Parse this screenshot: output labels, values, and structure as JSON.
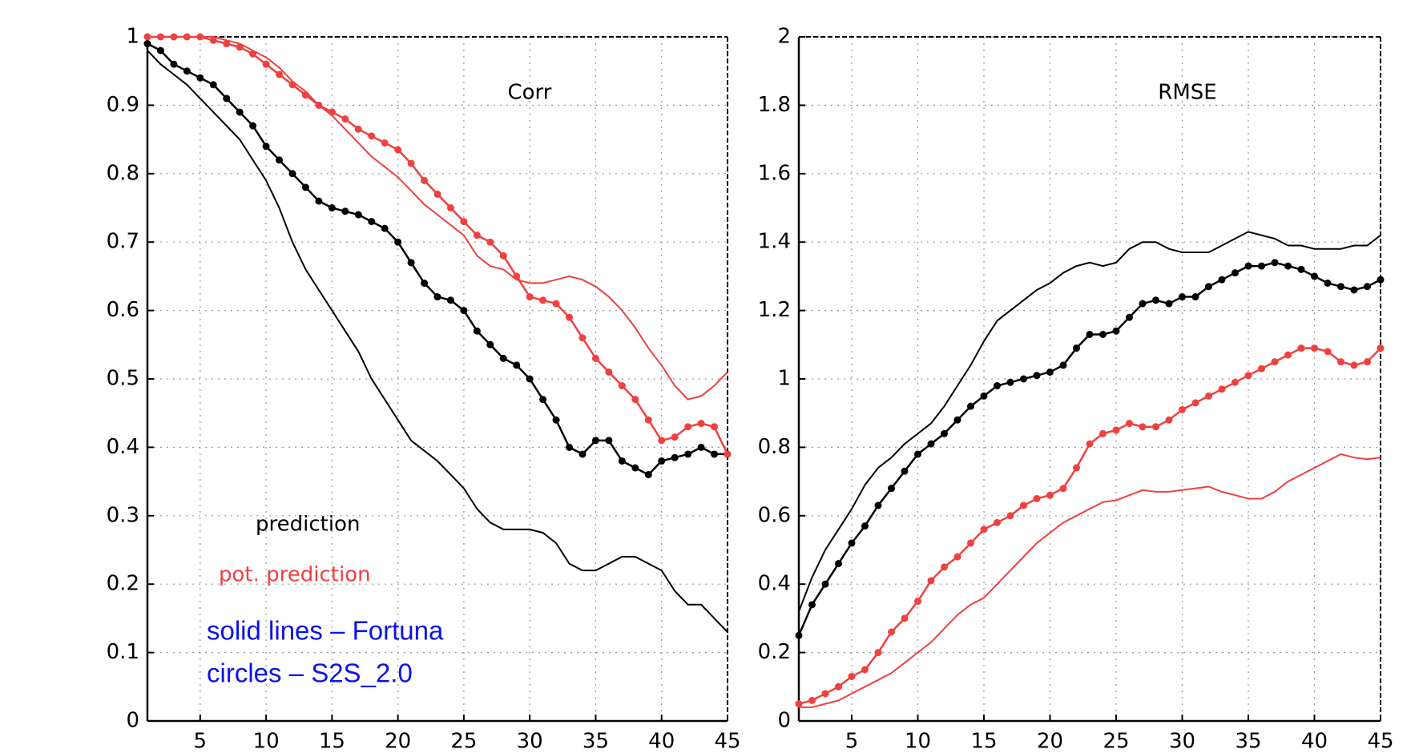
{
  "chart_data": [
    {
      "type": "line",
      "title": "Corr",
      "x": [
        1,
        2,
        3,
        4,
        5,
        6,
        7,
        8,
        9,
        10,
        11,
        12,
        13,
        14,
        15,
        16,
        17,
        18,
        19,
        20,
        21,
        22,
        23,
        24,
        25,
        26,
        27,
        28,
        29,
        30,
        31,
        32,
        33,
        34,
        35,
        36,
        37,
        38,
        39,
        40,
        41,
        42,
        43,
        44,
        45
      ],
      "xlim": [
        1,
        45
      ],
      "xticks": [
        5,
        10,
        15,
        20,
        25,
        30,
        35,
        40,
        45
      ],
      "ylim": [
        0,
        1
      ],
      "yticks": [
        0,
        0.1,
        0.2,
        0.3,
        0.4,
        0.5,
        0.6,
        0.7,
        0.8,
        0.9,
        1
      ],
      "grid": true,
      "series": [
        {
          "color": "#000000",
          "marker": "none",
          "values": [
            0.98,
            0.96,
            0.945,
            0.93,
            0.91,
            0.89,
            0.87,
            0.85,
            0.82,
            0.79,
            0.75,
            0.7,
            0.66,
            0.63,
            0.6,
            0.57,
            0.54,
            0.5,
            0.47,
            0.44,
            0.41,
            0.395,
            0.38,
            0.36,
            0.34,
            0.31,
            0.29,
            0.28,
            0.28,
            0.28,
            0.275,
            0.26,
            0.23,
            0.22,
            0.22,
            0.23,
            0.24,
            0.24,
            0.23,
            0.22,
            0.19,
            0.17,
            0.17,
            0.15,
            0.13
          ]
        },
        {
          "color": "#000000",
          "marker": "circle",
          "values": [
            0.99,
            0.98,
            0.96,
            0.95,
            0.94,
            0.93,
            0.91,
            0.89,
            0.87,
            0.84,
            0.82,
            0.8,
            0.78,
            0.76,
            0.75,
            0.745,
            0.74,
            0.73,
            0.72,
            0.7,
            0.67,
            0.64,
            0.62,
            0.615,
            0.6,
            0.57,
            0.55,
            0.53,
            0.52,
            0.5,
            0.47,
            0.44,
            0.4,
            0.39,
            0.41,
            0.41,
            0.38,
            0.37,
            0.36,
            0.38,
            0.385,
            0.39,
            0.4,
            0.39,
            0.39
          ]
        },
        {
          "color": "#f04040",
          "marker": "none",
          "values": [
            1.0,
            1.0,
            1.0,
            1.0,
            1.0,
            1.0,
            0.995,
            0.99,
            0.98,
            0.97,
            0.955,
            0.935,
            0.92,
            0.9,
            0.885,
            0.865,
            0.845,
            0.825,
            0.81,
            0.795,
            0.775,
            0.755,
            0.74,
            0.725,
            0.71,
            0.68,
            0.665,
            0.66,
            0.645,
            0.64,
            0.64,
            0.645,
            0.65,
            0.645,
            0.635,
            0.62,
            0.6,
            0.575,
            0.545,
            0.52,
            0.49,
            0.47,
            0.475,
            0.49,
            0.51
          ]
        },
        {
          "color": "#f04040",
          "marker": "circle",
          "values": [
            1.0,
            1.0,
            1.0,
            1.0,
            1.0,
            0.995,
            0.99,
            0.985,
            0.975,
            0.96,
            0.945,
            0.93,
            0.915,
            0.9,
            0.89,
            0.88,
            0.865,
            0.855,
            0.845,
            0.835,
            0.815,
            0.79,
            0.77,
            0.75,
            0.73,
            0.71,
            0.7,
            0.68,
            0.65,
            0.62,
            0.615,
            0.61,
            0.59,
            0.56,
            0.53,
            0.51,
            0.49,
            0.47,
            0.44,
            0.41,
            0.415,
            0.43,
            0.435,
            0.43,
            0.39
          ]
        }
      ],
      "annotations": [
        {
          "text": "prediction",
          "color": "#000000"
        },
        {
          "text": "pot. prediction",
          "color": "#f04040"
        },
        {
          "text": "solid lines – Fortuna",
          "color": "#0a14e6"
        },
        {
          "text": "circles – S2S_2.0",
          "color": "#0a14e6"
        }
      ]
    },
    {
      "type": "line",
      "title": "RMSE",
      "x": [
        1,
        2,
        3,
        4,
        5,
        6,
        7,
        8,
        9,
        10,
        11,
        12,
        13,
        14,
        15,
        16,
        17,
        18,
        19,
        20,
        21,
        22,
        23,
        24,
        25,
        26,
        27,
        28,
        29,
        30,
        31,
        32,
        33,
        34,
        35,
        36,
        37,
        38,
        39,
        40,
        41,
        42,
        43,
        44,
        45
      ],
      "xlim": [
        1,
        45
      ],
      "xticks": [
        5,
        10,
        15,
        20,
        25,
        30,
        35,
        40,
        45
      ],
      "ylim": [
        0,
        2
      ],
      "yticks": [
        0,
        0.2,
        0.4,
        0.6,
        0.8,
        1,
        1.2,
        1.4,
        1.6,
        1.8,
        2
      ],
      "grid": true,
      "series": [
        {
          "color": "#000000",
          "marker": "none",
          "values": [
            0.32,
            0.42,
            0.5,
            0.56,
            0.62,
            0.69,
            0.74,
            0.77,
            0.81,
            0.84,
            0.87,
            0.92,
            0.98,
            1.04,
            1.11,
            1.17,
            1.2,
            1.23,
            1.26,
            1.28,
            1.31,
            1.33,
            1.34,
            1.33,
            1.34,
            1.38,
            1.4,
            1.4,
            1.38,
            1.37,
            1.37,
            1.37,
            1.39,
            1.41,
            1.43,
            1.42,
            1.41,
            1.39,
            1.39,
            1.38,
            1.38,
            1.38,
            1.39,
            1.39,
            1.42
          ]
        },
        {
          "color": "#000000",
          "marker": "circle",
          "values": [
            0.25,
            0.34,
            0.4,
            0.46,
            0.52,
            0.57,
            0.63,
            0.68,
            0.73,
            0.78,
            0.81,
            0.84,
            0.88,
            0.92,
            0.95,
            0.98,
            0.99,
            1.0,
            1.01,
            1.02,
            1.04,
            1.09,
            1.13,
            1.13,
            1.14,
            1.18,
            1.22,
            1.23,
            1.22,
            1.24,
            1.24,
            1.27,
            1.29,
            1.31,
            1.33,
            1.33,
            1.34,
            1.33,
            1.32,
            1.3,
            1.28,
            1.27,
            1.26,
            1.27,
            1.29
          ]
        },
        {
          "color": "#f04040",
          "marker": "none",
          "values": [
            0.04,
            0.04,
            0.05,
            0.06,
            0.08,
            0.1,
            0.12,
            0.14,
            0.17,
            0.2,
            0.23,
            0.27,
            0.31,
            0.34,
            0.36,
            0.4,
            0.44,
            0.48,
            0.52,
            0.55,
            0.58,
            0.6,
            0.62,
            0.64,
            0.645,
            0.66,
            0.675,
            0.67,
            0.67,
            0.675,
            0.68,
            0.685,
            0.67,
            0.66,
            0.65,
            0.65,
            0.67,
            0.7,
            0.72,
            0.74,
            0.76,
            0.78,
            0.77,
            0.765,
            0.77
          ]
        },
        {
          "color": "#f04040",
          "marker": "circle",
          "values": [
            0.05,
            0.06,
            0.08,
            0.1,
            0.13,
            0.15,
            0.2,
            0.26,
            0.3,
            0.35,
            0.41,
            0.45,
            0.48,
            0.52,
            0.56,
            0.58,
            0.6,
            0.63,
            0.65,
            0.66,
            0.68,
            0.74,
            0.81,
            0.84,
            0.85,
            0.87,
            0.86,
            0.86,
            0.88,
            0.91,
            0.93,
            0.95,
            0.97,
            0.99,
            1.01,
            1.03,
            1.05,
            1.07,
            1.09,
            1.09,
            1.08,
            1.05,
            1.04,
            1.05,
            1.09
          ]
        }
      ]
    }
  ]
}
